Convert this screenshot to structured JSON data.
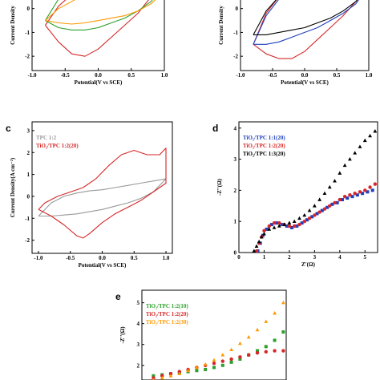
{
  "chart_data": [
    {
      "id": "a",
      "type": "line",
      "panel_label": "",
      "xlabel": "Potential(V vs SCE)",
      "ylabel": "Current Density",
      "xticks": [
        "-1.0",
        "-0.5",
        "0.0",
        "0.5",
        "1.0"
      ],
      "yticks": [
        "0",
        "-1",
        "-2"
      ],
      "xlim": [
        -1.0,
        1.0
      ],
      "ylim": [
        -2.6,
        1.2
      ],
      "series": [
        {
          "color": "#d62728",
          "x": [
            -0.8,
            -0.6,
            -0.4,
            -0.2,
            0.0,
            0.2,
            0.4,
            0.6,
            0.8,
            0.95,
            1.0,
            0.95,
            0.8,
            0.6,
            0.4,
            0.2,
            0.0,
            -0.2,
            -0.4,
            -0.6,
            -0.8
          ],
          "y": [
            -0.7,
            -1.4,
            -1.9,
            -2.0,
            -1.7,
            -1.2,
            -0.7,
            -0.2,
            0.5,
            1.0,
            1.3,
            1.2,
            1.1,
            1.2,
            1.3,
            1.3,
            1.2,
            1.0,
            0.6,
            0.1,
            -0.7
          ]
        },
        {
          "color": "#2ca02c",
          "x": [
            -0.8,
            -0.6,
            -0.4,
            -0.2,
            0.0,
            0.2,
            0.4,
            0.6,
            0.8,
            0.95,
            1.0,
            0.95,
            0.8,
            0.6,
            0.4,
            0.2,
            0.0,
            -0.2,
            -0.4,
            -0.6,
            -0.8
          ],
          "y": [
            -0.5,
            -0.8,
            -0.9,
            -0.9,
            -0.8,
            -0.6,
            -0.4,
            -0.1,
            0.3,
            0.8,
            1.2,
            1.1,
            1.1,
            1.2,
            1.3,
            1.3,
            1.2,
            1.0,
            0.8,
            0.4,
            -0.5
          ]
        },
        {
          "color": "#ff9900",
          "x": [
            -0.8,
            -0.6,
            -0.4,
            -0.2,
            0.0,
            0.2,
            0.4,
            0.6,
            0.8,
            0.95,
            1.0,
            0.95,
            0.8,
            0.6,
            0.4,
            0.2,
            0.0,
            -0.2,
            -0.4,
            -0.6,
            -0.8
          ],
          "y": [
            -0.5,
            -0.6,
            -0.65,
            -0.6,
            -0.5,
            -0.4,
            -0.3,
            -0.1,
            0.2,
            0.6,
            1.0,
            0.9,
            0.8,
            0.85,
            0.9,
            0.9,
            0.8,
            0.6,
            0.3,
            0.0,
            -0.5
          ]
        }
      ]
    },
    {
      "id": "b",
      "type": "line",
      "panel_label": "",
      "xlabel": "Potential(V vs SCE)",
      "ylabel": "Current Density",
      "xticks": [
        "-1.0",
        "-0.5",
        "0.0",
        "0.5",
        "1.0"
      ],
      "yticks": [
        "0",
        "-1",
        "-2"
      ],
      "xlim": [
        -1.0,
        1.0
      ],
      "ylim": [
        -2.6,
        1.2
      ],
      "series": [
        {
          "color": "#d62728",
          "x": [
            -0.8,
            -0.6,
            -0.4,
            -0.2,
            0.0,
            0.2,
            0.4,
            0.6,
            0.8,
            0.95,
            1.0,
            0.95,
            0.8,
            0.6,
            0.4,
            0.2,
            0.0,
            -0.2,
            -0.4,
            -0.6,
            -0.8
          ],
          "y": [
            -1.5,
            -1.9,
            -2.1,
            -2.1,
            -1.8,
            -1.3,
            -0.8,
            -0.3,
            0.3,
            0.9,
            1.3,
            1.2,
            1.0,
            1.1,
            1.2,
            1.2,
            1.1,
            0.9,
            0.5,
            -0.2,
            -1.5
          ]
        },
        {
          "color": "#1f3fbf",
          "x": [
            -0.8,
            -0.6,
            -0.4,
            -0.2,
            0.0,
            0.2,
            0.4,
            0.6,
            0.8,
            0.95,
            1.0,
            0.95,
            0.8,
            0.6,
            0.4,
            0.2,
            0.0,
            -0.2,
            -0.4,
            -0.6,
            -0.8
          ],
          "y": [
            -1.5,
            -1.5,
            -1.4,
            -1.2,
            -1.0,
            -0.8,
            -0.5,
            -0.2,
            0.2,
            0.8,
            1.2,
            1.1,
            1.0,
            1.05,
            1.1,
            1.1,
            1.0,
            0.8,
            0.4,
            -0.3,
            -1.5
          ]
        },
        {
          "color": "#000000",
          "x": [
            -0.8,
            -0.6,
            -0.4,
            -0.2,
            0.0,
            0.2,
            0.4,
            0.6,
            0.8,
            0.95,
            1.0,
            0.95,
            0.8,
            0.6,
            0.4,
            0.2,
            0.0,
            -0.2,
            -0.4,
            -0.6,
            -0.8
          ],
          "y": [
            -1.1,
            -1.1,
            -1.0,
            -0.9,
            -0.8,
            -0.6,
            -0.4,
            -0.1,
            0.3,
            0.8,
            1.2,
            1.1,
            1.0,
            1.1,
            1.2,
            1.2,
            1.1,
            0.9,
            0.5,
            -0.1,
            -1.1
          ]
        }
      ]
    },
    {
      "id": "c",
      "type": "line",
      "panel_label": "c",
      "xlabel": "Potential(V vs SCE)",
      "ylabel": "Current Density(A cm⁻²)",
      "xticks": [
        "-1.0",
        "-0.5",
        "0.0",
        "0.5",
        "1.0"
      ],
      "yticks": [
        "3",
        "2",
        "1",
        "0",
        "-1",
        "-2"
      ],
      "xlim": [
        -1.1,
        1.1
      ],
      "ylim": [
        -2.6,
        3.4
      ],
      "legend": [
        "TPC 1:2",
        "TiO₂/TPC 1:2(20)"
      ],
      "legend_colors": [
        "#999999",
        "#d62728"
      ],
      "series": [
        {
          "name": "TPC 1:2",
          "color": "#999999",
          "x": [
            -1.0,
            -0.8,
            -0.6,
            -0.4,
            -0.2,
            0.0,
            0.2,
            0.4,
            0.6,
            0.8,
            1.0,
            0.8,
            0.6,
            0.4,
            0.2,
            0.0,
            -0.2,
            -0.4,
            -0.6,
            -0.8,
            -1.0
          ],
          "y": [
            -0.9,
            -0.9,
            -0.85,
            -0.8,
            -0.7,
            -0.6,
            -0.45,
            -0.3,
            -0.1,
            0.2,
            0.8,
            0.7,
            0.6,
            0.5,
            0.4,
            0.3,
            0.25,
            0.15,
            0.0,
            -0.3,
            -0.9
          ]
        },
        {
          "name": "TiO₂/TPC 1:2(20)",
          "color": "#d62728",
          "x": [
            -1.0,
            -0.8,
            -0.6,
            -0.4,
            -0.3,
            -0.2,
            0.0,
            0.2,
            0.4,
            0.6,
            0.8,
            1.0,
            1.0,
            0.9,
            0.7,
            0.5,
            0.3,
            0.1,
            -0.1,
            -0.3,
            -0.5,
            -0.7,
            -0.9,
            -1.0
          ],
          "y": [
            -0.6,
            -0.9,
            -1.3,
            -1.8,
            -1.9,
            -1.7,
            -1.2,
            -0.8,
            -0.5,
            -0.2,
            0.2,
            0.6,
            2.2,
            1.9,
            1.9,
            2.1,
            1.9,
            1.4,
            0.8,
            0.4,
            0.2,
            0.0,
            -0.3,
            -0.6
          ]
        }
      ]
    },
    {
      "id": "d",
      "type": "scatter",
      "panel_label": "d",
      "xlabel": "Z'(Ω)",
      "ylabel": "-Z''(Ω)",
      "xticks": [
        "0",
        "1",
        "2",
        "3",
        "4",
        "5"
      ],
      "yticks": [
        "0",
        "1",
        "2",
        "3",
        "4"
      ],
      "xlim": [
        0,
        5.5
      ],
      "ylim": [
        0,
        4.2
      ],
      "legend": [
        "TiO₂/TPC 1:1(20)",
        "TiO₂/TPC 1:2(20)",
        "TiO₂/TPC 1:3(20)"
      ],
      "legend_colors": [
        "#1f3fbf",
        "#d62728",
        "#000000"
      ],
      "series": [
        {
          "name": "TiO₂/TPC 1:1(20)",
          "color": "#1f3fbf",
          "marker": "square",
          "x": [
            0.75,
            0.85,
            0.95,
            1.1,
            1.3,
            1.5,
            1.7,
            1.9,
            2.1,
            2.3,
            2.5,
            2.7,
            2.9,
            3.1,
            3.3,
            3.5,
            3.7,
            3.9,
            4.1,
            4.3,
            4.5,
            4.7,
            4.9,
            5.1,
            5.3
          ],
          "y": [
            0.05,
            0.3,
            0.55,
            0.75,
            0.9,
            0.95,
            0.9,
            0.85,
            0.8,
            0.85,
            0.95,
            1.05,
            1.15,
            1.25,
            1.35,
            1.45,
            1.55,
            1.6,
            1.7,
            1.75,
            1.8,
            1.85,
            1.9,
            1.95,
            2.0
          ]
        },
        {
          "name": "TiO₂/TPC 1:2(20)",
          "color": "#d62728",
          "marker": "circle",
          "x": [
            0.7,
            0.8,
            0.9,
            1.0,
            1.2,
            1.4,
            1.6,
            1.8,
            2.0,
            2.2,
            2.4,
            2.6,
            2.8,
            3.0,
            3.2,
            3.4,
            3.6,
            3.8,
            4.0,
            4.2,
            4.4,
            4.6,
            4.8,
            5.0,
            5.2,
            5.4
          ],
          "y": [
            0.05,
            0.3,
            0.5,
            0.7,
            0.85,
            0.95,
            0.95,
            0.9,
            0.85,
            0.85,
            0.9,
            1.0,
            1.1,
            1.2,
            1.3,
            1.4,
            1.5,
            1.6,
            1.7,
            1.8,
            1.85,
            1.9,
            1.95,
            2.0,
            2.1,
            2.2
          ]
        },
        {
          "name": "TiO₂/TPC 1:3(20)",
          "color": "#000000",
          "marker": "triangle",
          "x": [
            0.6,
            0.7,
            0.8,
            0.9,
            1.0,
            1.2,
            1.4,
            1.6,
            1.8,
            2.0,
            2.2,
            2.4,
            2.6,
            2.8,
            3.0,
            3.2,
            3.4,
            3.6,
            3.8,
            4.0,
            4.2,
            4.4,
            4.6,
            4.8,
            5.0,
            5.2,
            5.4
          ],
          "y": [
            0.05,
            0.2,
            0.35,
            0.5,
            0.6,
            0.75,
            0.8,
            0.85,
            0.9,
            0.95,
            1.0,
            1.1,
            1.2,
            1.35,
            1.5,
            1.7,
            1.9,
            2.1,
            2.3,
            2.55,
            2.8,
            3.0,
            3.2,
            3.4,
            3.6,
            3.75,
            3.9
          ]
        }
      ]
    },
    {
      "id": "e",
      "type": "scatter",
      "panel_label": "e",
      "xlabel": "",
      "ylabel": "-Z''(Ω)",
      "xticks": [],
      "yticks": [
        "5",
        "4",
        "3",
        "2"
      ],
      "xlim": [
        0,
        5
      ],
      "ylim": [
        1.3,
        5.6
      ],
      "legend": [
        "TiO₂/TPC 1:2(10)",
        "TiO₂/TPC 1:2(20)",
        "TiO₂/TPC 1:2(30)"
      ],
      "legend_colors": [
        "#2ca02c",
        "#d62728",
        "#ff9900"
      ],
      "series": [
        {
          "name": "TiO₂/TPC 1:2(10)",
          "color": "#2ca02c",
          "marker": "square",
          "x": [
            0.4,
            0.7,
            1.0,
            1.3,
            1.6,
            1.9,
            2.2,
            2.5,
            2.8,
            3.1,
            3.4,
            3.7,
            4.0,
            4.3,
            4.6,
            4.9
          ],
          "y": [
            1.5,
            1.55,
            1.6,
            1.65,
            1.7,
            1.75,
            1.8,
            1.9,
            2.0,
            2.15,
            2.3,
            2.5,
            2.7,
            2.9,
            3.2,
            3.6
          ]
        },
        {
          "name": "TiO₂/TPC 1:2(20)",
          "color": "#d62728",
          "marker": "circle",
          "x": [
            0.4,
            0.7,
            1.0,
            1.3,
            1.6,
            1.9,
            2.2,
            2.5,
            2.8,
            3.1,
            3.4,
            3.7,
            4.0,
            4.3,
            4.6,
            4.9
          ],
          "y": [
            1.4,
            1.5,
            1.6,
            1.7,
            1.8,
            1.9,
            2.0,
            2.1,
            2.2,
            2.3,
            2.4,
            2.5,
            2.6,
            2.65,
            2.7,
            2.7
          ]
        },
        {
          "name": "TiO₂/TPC 1:2(30)",
          "color": "#ff9900",
          "marker": "triangle",
          "x": [
            0.4,
            0.7,
            1.0,
            1.3,
            1.6,
            1.9,
            2.2,
            2.5,
            2.8,
            3.1,
            3.4,
            3.7,
            4.0,
            4.3,
            4.6,
            4.9
          ],
          "y": [
            1.3,
            1.4,
            1.5,
            1.6,
            1.75,
            1.9,
            2.05,
            2.25,
            2.5,
            2.75,
            3.05,
            3.35,
            3.7,
            4.1,
            4.5,
            5.0
          ]
        }
      ]
    }
  ]
}
